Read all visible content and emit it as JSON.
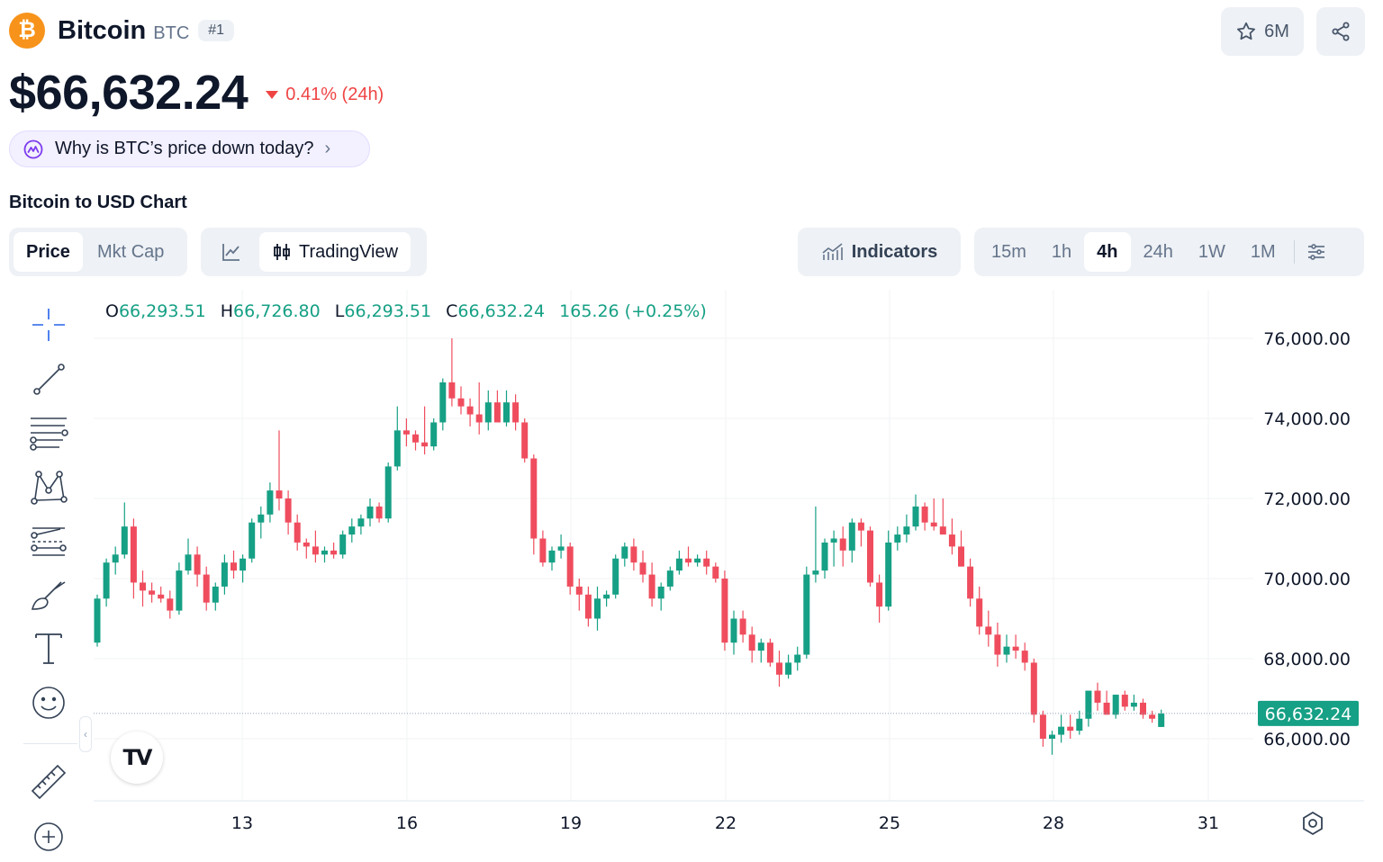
{
  "header": {
    "coin_name": "Bitcoin",
    "symbol": "BTC",
    "rank": "#1",
    "logo_glyph": "₿",
    "watchlist_count": "6M",
    "price": "$66,632.24",
    "change": "0.41% (24h)",
    "change_color": "#ef4444",
    "why_prompt": "Why is BTC’s price down today?"
  },
  "chart_section": {
    "title": "Bitcoin to USD Chart"
  },
  "toolbar": {
    "metric_tabs": [
      "Price",
      "Mkt Cap"
    ],
    "active_metric": "Price",
    "chart_type_tradingview": "TradingView",
    "indicators_label": "Indicators",
    "timeframes": [
      "15m",
      "1h",
      "4h",
      "24h",
      "1W",
      "1M"
    ],
    "active_timeframe": "4h"
  },
  "ohlc_legend": {
    "o_label": "O",
    "o": "66,293.51",
    "h_label": "H",
    "h": "66,726.80",
    "l_label": "L",
    "l": "66,293.51",
    "c_label": "C",
    "c": "66,632.24",
    "change": "165.26 (+0.25%)"
  },
  "tools": [
    "crosshair-icon",
    "trend-line-icon",
    "fib-icon",
    "pattern-icon",
    "projection-icon",
    "brush-icon",
    "text-icon",
    "emoji-icon",
    "ruler-icon",
    "zoom-in-icon"
  ],
  "chart_data": {
    "type": "candlestick",
    "up_color": "#16a085",
    "down_color": "#ef4d5e",
    "y_ticks": [
      "76,000.00",
      "74,000.00",
      "72,000.00",
      "70,000.00",
      "68,000.00",
      "66,000.00"
    ],
    "y_tick_values": [
      76000,
      74000,
      72000,
      70000,
      68000,
      66000
    ],
    "x_ticks": [
      "13",
      "16",
      "19",
      "22",
      "25",
      "28",
      "31"
    ],
    "current_price_label": "66,632.24",
    "current_price": 66632.24,
    "candles": [
      [
        68400,
        69600,
        68300,
        69500
      ],
      [
        69500,
        70500,
        69300,
        70400
      ],
      [
        70400,
        70800,
        70100,
        70600
      ],
      [
        70600,
        71900,
        70500,
        71300
      ],
      [
        71300,
        71500,
        69500,
        69900
      ],
      [
        69900,
        70200,
        69300,
        69700
      ],
      [
        69700,
        69900,
        69400,
        69600
      ],
      [
        69600,
        69800,
        69400,
        69500
      ],
      [
        69500,
        69700,
        69000,
        69200
      ],
      [
        69200,
        70400,
        69100,
        70200
      ],
      [
        70200,
        71000,
        70100,
        70600
      ],
      [
        70600,
        70800,
        69800,
        70100
      ],
      [
        70100,
        70300,
        69200,
        69400
      ],
      [
        69400,
        69900,
        69200,
        69800
      ],
      [
        69800,
        70600,
        69600,
        70400
      ],
      [
        70400,
        70700,
        70000,
        70200
      ],
      [
        70200,
        70600,
        69900,
        70500
      ],
      [
        70500,
        71500,
        70400,
        71400
      ],
      [
        71400,
        71800,
        71000,
        71600
      ],
      [
        71600,
        72400,
        71400,
        72200
      ],
      [
        72200,
        73700,
        71700,
        72000
      ],
      [
        72000,
        72200,
        71100,
        71400
      ],
      [
        71400,
        71600,
        70700,
        70900
      ],
      [
        70900,
        71000,
        70500,
        70800
      ],
      [
        70800,
        71200,
        70400,
        70600
      ],
      [
        70600,
        70800,
        70400,
        70700
      ],
      [
        70700,
        70900,
        70500,
        70600
      ],
      [
        70600,
        71200,
        70500,
        71100
      ],
      [
        71100,
        71500,
        70900,
        71300
      ],
      [
        71300,
        71600,
        71100,
        71500
      ],
      [
        71500,
        72000,
        71300,
        71800
      ],
      [
        71800,
        71900,
        71400,
        71500
      ],
      [
        71500,
        72900,
        71400,
        72800
      ],
      [
        72800,
        74300,
        72700,
        73700
      ],
      [
        73700,
        74000,
        73300,
        73600
      ],
      [
        73600,
        73700,
        73200,
        73400
      ],
      [
        73400,
        74300,
        73100,
        73300
      ],
      [
        73300,
        74000,
        73200,
        73900
      ],
      [
        73900,
        75000,
        73700,
        74900
      ],
      [
        74900,
        76000,
        74300,
        74500
      ],
      [
        74500,
        74800,
        74100,
        74300
      ],
      [
        74300,
        74500,
        73800,
        74100
      ],
      [
        74100,
        74900,
        73600,
        73900
      ],
      [
        73900,
        74700,
        73700,
        74400
      ],
      [
        74400,
        74700,
        73900,
        73900
      ],
      [
        73900,
        74700,
        73800,
        74400
      ],
      [
        74400,
        74600,
        73700,
        73900
      ],
      [
        73900,
        74000,
        72900,
        73000
      ],
      [
        73000,
        73100,
        70600,
        71000
      ],
      [
        71000,
        71200,
        70300,
        70400
      ],
      [
        70400,
        70800,
        70200,
        70700
      ],
      [
        70700,
        71100,
        70500,
        70800
      ],
      [
        70800,
        70900,
        69600,
        69800
      ],
      [
        69800,
        70000,
        69200,
        69600
      ],
      [
        69600,
        69800,
        68800,
        69000
      ],
      [
        69000,
        69800,
        68700,
        69500
      ],
      [
        69500,
        69700,
        69300,
        69600
      ],
      [
        69600,
        70600,
        69500,
        70500
      ],
      [
        70500,
        70900,
        70300,
        70800
      ],
      [
        70800,
        71000,
        70200,
        70400
      ],
      [
        70400,
        70700,
        69900,
        70100
      ],
      [
        70100,
        70400,
        69300,
        69500
      ],
      [
        69500,
        69900,
        69200,
        69800
      ],
      [
        69800,
        70300,
        69700,
        70200
      ],
      [
        70200,
        70700,
        70100,
        70500
      ],
      [
        70500,
        70800,
        70300,
        70400
      ],
      [
        70400,
        70600,
        70300,
        70500
      ],
      [
        70500,
        70700,
        70100,
        70300
      ],
      [
        70300,
        70400,
        69900,
        70000
      ],
      [
        70000,
        70200,
        68200,
        68400
      ],
      [
        68400,
        69200,
        68100,
        69000
      ],
      [
        69000,
        69200,
        68400,
        68600
      ],
      [
        68600,
        68800,
        67900,
        68200
      ],
      [
        68200,
        68500,
        67900,
        68400
      ],
      [
        68400,
        68500,
        67800,
        67900
      ],
      [
        67900,
        68200,
        67300,
        67600
      ],
      [
        67600,
        68100,
        67500,
        67900
      ],
      [
        67900,
        68300,
        67700,
        68100
      ],
      [
        68100,
        70300,
        68000,
        70100
      ],
      [
        70100,
        71800,
        69900,
        70200
      ],
      [
        70200,
        71000,
        70000,
        70900
      ],
      [
        70900,
        71200,
        70300,
        71000
      ],
      [
        71000,
        71300,
        70300,
        70700
      ],
      [
        70700,
        71500,
        70400,
        71400
      ],
      [
        71400,
        71500,
        70800,
        71200
      ],
      [
        71200,
        71300,
        69800,
        69900
      ],
      [
        69900,
        70100,
        68900,
        69300
      ],
      [
        69300,
        71200,
        69200,
        70900
      ],
      [
        70900,
        71300,
        70700,
        71100
      ],
      [
        71100,
        71600,
        70900,
        71300
      ],
      [
        71300,
        72100,
        71200,
        71800
      ],
      [
        71800,
        71900,
        71200,
        71400
      ],
      [
        71400,
        72000,
        71200,
        71300
      ],
      [
        71300,
        72000,
        71200,
        71100
      ],
      [
        71100,
        71500,
        70600,
        70800
      ],
      [
        70800,
        71200,
        70300,
        70300
      ],
      [
        70300,
        70500,
        69300,
        69500
      ],
      [
        69500,
        69800,
        68600,
        68800
      ],
      [
        68800,
        69200,
        68300,
        68600
      ],
      [
        68600,
        68900,
        67800,
        68100
      ],
      [
        68100,
        68600,
        67900,
        68300
      ],
      [
        68300,
        68600,
        68000,
        68200
      ],
      [
        68200,
        68400,
        67700,
        67900
      ],
      [
        67900,
        68000,
        66400,
        66600
      ],
      [
        66600,
        66700,
        65800,
        66000
      ],
      [
        66000,
        66200,
        65600,
        66100
      ],
      [
        66100,
        66600,
        65900,
        66300
      ],
      [
        66300,
        66600,
        66000,
        66200
      ],
      [
        66200,
        66700,
        66100,
        66500
      ],
      [
        66500,
        67100,
        66300,
        67200
      ],
      [
        67200,
        67400,
        66700,
        66900
      ],
      [
        66900,
        67200,
        66600,
        66600
      ],
      [
        66600,
        67100,
        66500,
        67100
      ],
      [
        67100,
        67200,
        66700,
        66800
      ],
      [
        66800,
        67100,
        66700,
        66900
      ],
      [
        66900,
        67000,
        66500,
        66600
      ],
      [
        66600,
        66700,
        66400,
        66500
      ],
      [
        66293.51,
        66726.8,
        66293.51,
        66632.24
      ]
    ]
  }
}
